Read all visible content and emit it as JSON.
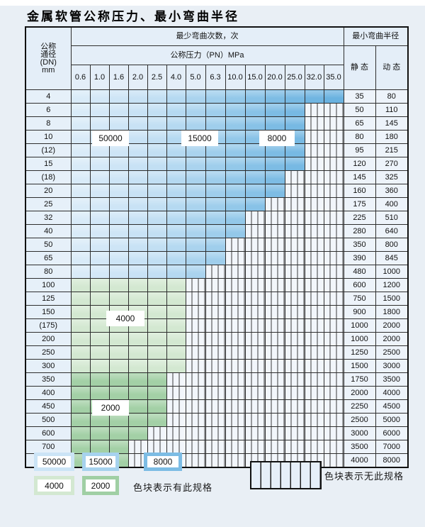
{
  "title": "金属软管公称压力、最小弯曲半径",
  "table": {
    "dn_header_lines": [
      "公称",
      "通径",
      "(DN)",
      "mm"
    ],
    "bend_times_header": "最少弯曲次数，次",
    "pressure_header": "公称压力（PN）MPa",
    "radius_header": "最小弯曲半径",
    "static_header": "静 态",
    "dynamic_header": "动 态",
    "pressure_columns": [
      "0.6",
      "1.0",
      "1.6",
      "2.0",
      "2.5",
      "4.0",
      "5.0",
      "6.3",
      "10.0",
      "15.0",
      "20.0",
      "25.0",
      "32.0",
      "35.0"
    ],
    "rows": [
      {
        "dn": "4",
        "static": "35",
        "dynamic": "80",
        "last_col": 13,
        "colored_through": "35.0"
      },
      {
        "dn": "6",
        "static": "50",
        "dynamic": "110",
        "last_col": 11,
        "colored_through": "25.0"
      },
      {
        "dn": "8",
        "static": "65",
        "dynamic": "145",
        "last_col": 11,
        "colored_through": "25.0"
      },
      {
        "dn": "10",
        "static": "80",
        "dynamic": "180",
        "last_col": 11,
        "colored_through": "25.0"
      },
      {
        "dn": "(12)",
        "static": "95",
        "dynamic": "215",
        "last_col": 11,
        "colored_through": "25.0"
      },
      {
        "dn": "15",
        "static": "120",
        "dynamic": "270",
        "last_col": 11,
        "colored_through": "25.0"
      },
      {
        "dn": "(18)",
        "static": "145",
        "dynamic": "325",
        "last_col": 10,
        "colored_through": "20.0"
      },
      {
        "dn": "20",
        "static": "160",
        "dynamic": "360",
        "last_col": 10,
        "colored_through": "20.0"
      },
      {
        "dn": "25",
        "static": "175",
        "dynamic": "400",
        "last_col": 9,
        "colored_through": "15.0"
      },
      {
        "dn": "32",
        "static": "225",
        "dynamic": "510",
        "last_col": 8,
        "colored_through": "10.0"
      },
      {
        "dn": "40",
        "static": "280",
        "dynamic": "640",
        "last_col": 8,
        "colored_through": "10.0"
      },
      {
        "dn": "50",
        "static": "350",
        "dynamic": "800",
        "last_col": 7,
        "colored_through": "6.3"
      },
      {
        "dn": "65",
        "static": "390",
        "dynamic": "845",
        "last_col": 7,
        "colored_through": "6.3"
      },
      {
        "dn": "80",
        "static": "480",
        "dynamic": "1000",
        "last_col": 6,
        "colored_through": "5.0"
      },
      {
        "dn": "100",
        "static": "600",
        "dynamic": "1200",
        "last_col": 5,
        "colored_through": "4.0"
      },
      {
        "dn": "125",
        "static": "750",
        "dynamic": "1500",
        "last_col": 5,
        "colored_through": "4.0"
      },
      {
        "dn": "150",
        "static": "900",
        "dynamic": "1800",
        "last_col": 5,
        "colored_through": "4.0"
      },
      {
        "dn": "(175)",
        "static": "1000",
        "dynamic": "2000",
        "last_col": 5,
        "colored_through": "4.0"
      },
      {
        "dn": "200",
        "static": "1000",
        "dynamic": "2000",
        "last_col": 5,
        "colored_through": "4.0"
      },
      {
        "dn": "250",
        "static": "1250",
        "dynamic": "2500",
        "last_col": 5,
        "colored_through": "4.0"
      },
      {
        "dn": "300",
        "static": "1500",
        "dynamic": "3000",
        "last_col": 5,
        "colored_through": "4.0"
      },
      {
        "dn": "350",
        "static": "1750",
        "dynamic": "3500",
        "last_col": 4,
        "colored_through": "2.5"
      },
      {
        "dn": "400",
        "static": "2000",
        "dynamic": "4000",
        "last_col": 4,
        "colored_through": "2.5"
      },
      {
        "dn": "450",
        "static": "2250",
        "dynamic": "4500",
        "last_col": 4,
        "colored_through": "2.5"
      },
      {
        "dn": "500",
        "static": "2500",
        "dynamic": "5000",
        "last_col": 4,
        "colored_through": "2.5"
      },
      {
        "dn": "600",
        "static": "3000",
        "dynamic": "6000",
        "last_col": 3,
        "colored_through": "2.0"
      },
      {
        "dn": "700",
        "static": "3500",
        "dynamic": "7000",
        "last_col": 2,
        "colored_through": "1.6"
      },
      {
        "dn": "800",
        "static": "4000",
        "dynamic": "8000",
        "last_col": 2,
        "colored_through": "1.6"
      }
    ]
  },
  "regions": {
    "blue_50000_cols": [
      0,
      4
    ],
    "blue_15000_cols": [
      5,
      7
    ],
    "blue_8000_cols": [
      8,
      13
    ],
    "green_4000_row_start": 14,
    "green_2000_row_start": 21
  },
  "region_labels": {
    "blue_50000": "50000",
    "blue_15000": "15000",
    "blue_8000": "8000",
    "green_4000": "4000",
    "green_2000": "2000"
  },
  "colors": {
    "blue_scale": [
      "#d9ebf8",
      "#d4e8f7",
      "#cee5f6",
      "#c8e2f5",
      "#c2dff3",
      "#b5d9f1",
      "#aad3ee",
      "#9fceec",
      "#93c8e9",
      "#88c2e7",
      "#7dbce4",
      "#77b9e3",
      "#70b5e1",
      "#6ab2e0"
    ],
    "green_light": "#d3e8d1",
    "green_dark": "#a3d0a6",
    "striped_bg": "#f2f6fb",
    "header_bg": "#e4eef8",
    "page_bg": "#e9eff5"
  },
  "legend": {
    "has_spec_items": [
      {
        "label": "50000",
        "color": "#cbe4f6"
      },
      {
        "label": "15000",
        "color": "#a6d2ee"
      },
      {
        "label": "8000",
        "color": "#7cbce4"
      },
      {
        "label": "4000",
        "color": "#d3e8d1"
      },
      {
        "label": "2000",
        "color": "#a0cfa4"
      }
    ],
    "has_spec_text": "色块表示有此规格",
    "no_spec_text": "色块表示无此规格"
  }
}
